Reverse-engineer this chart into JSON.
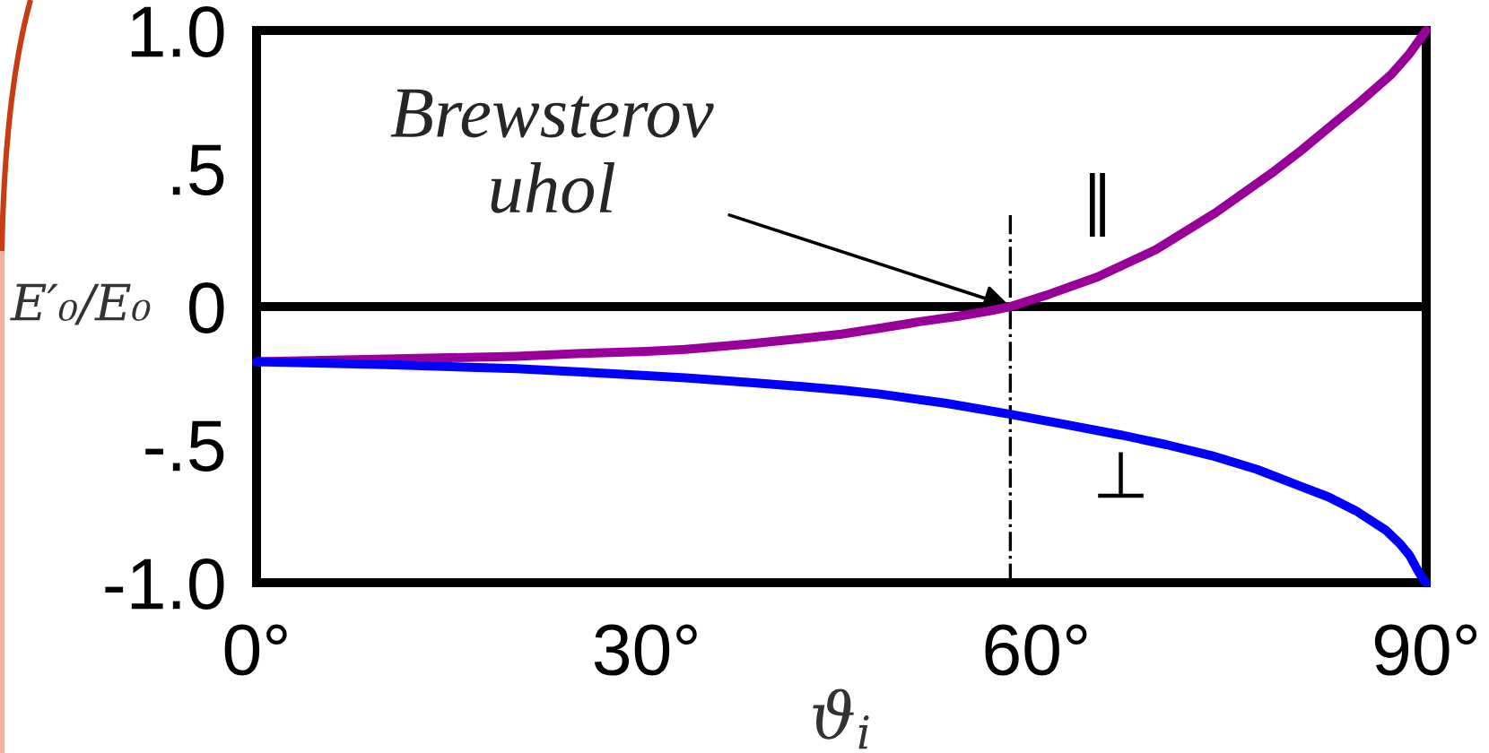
{
  "chart_data": {
    "type": "line",
    "xlabel": "ϑ$_{i}$",
    "ylabel": "E′₀/E₀",
    "series": [
      {
        "name": "∥",
        "color": "#990099",
        "x": [
          0,
          10,
          20,
          25,
          30,
          33,
          38,
          42,
          45,
          48,
          51,
          54,
          56.5,
          58,
          61,
          64.7,
          69.2,
          73.8,
          78.3,
          80.5,
          82.8,
          85,
          87.3,
          88.7,
          90
        ],
        "values": [
          -0.2,
          -0.19,
          -0.18,
          -0.17,
          -0.162,
          -0.155,
          -0.135,
          -0.115,
          -0.1,
          -0.078,
          -0.055,
          -0.035,
          -0.015,
          0,
          0.045,
          0.107,
          0.206,
          0.34,
          0.49,
          0.57,
          0.66,
          0.745,
          0.84,
          0.915,
          1.0
        ]
      },
      {
        "name": "⊥",
        "color": "#0000ff",
        "x": [
          0,
          10,
          20,
          25,
          30,
          33,
          38,
          42,
          45,
          48,
          53,
          58,
          62,
          66.5,
          70,
          73.5,
          77,
          80,
          82.5,
          84.6,
          86.9,
          88,
          88.7,
          89.4,
          89.8,
          90
        ],
        "values": [
          -0.2,
          -0.21,
          -0.225,
          -0.237,
          -0.25,
          -0.258,
          -0.275,
          -0.29,
          -0.302,
          -0.317,
          -0.35,
          -0.39,
          -0.425,
          -0.465,
          -0.5,
          -0.54,
          -0.59,
          -0.645,
          -0.69,
          -0.74,
          -0.81,
          -0.86,
          -0.9,
          -0.96,
          -0.99,
          -1.0
        ]
      }
    ],
    "xlim": [
      0,
      90
    ],
    "xticks": [
      {
        "value": 0,
        "label": "0°"
      },
      {
        "value": 30,
        "label": "30°"
      },
      {
        "value": 60,
        "label": "60°"
      },
      {
        "value": 90,
        "label": "90°"
      }
    ],
    "ylim": [
      -1,
      1
    ],
    "yticks": [
      {
        "value": -1,
        "label": "-1.0"
      },
      {
        "value": -0.5,
        "label": "-.5"
      },
      0,
      {
        "value": 0.5,
        "label": ".5"
      },
      {
        "value": 1,
        "label": "1.0"
      }
    ],
    "ref_lines": [
      {
        "axis": "x",
        "value": 58,
        "color": "#000000",
        "line_style": "dashdot"
      },
      {
        "axis": "y",
        "value": 0,
        "color": "#000000",
        "line_style": "solid"
      }
    ],
    "annotations": [
      {
        "text": "Brewsterov\nuhol",
        "x": 58,
        "y": 0
      }
    ],
    "line_style": "solid"
  }
}
